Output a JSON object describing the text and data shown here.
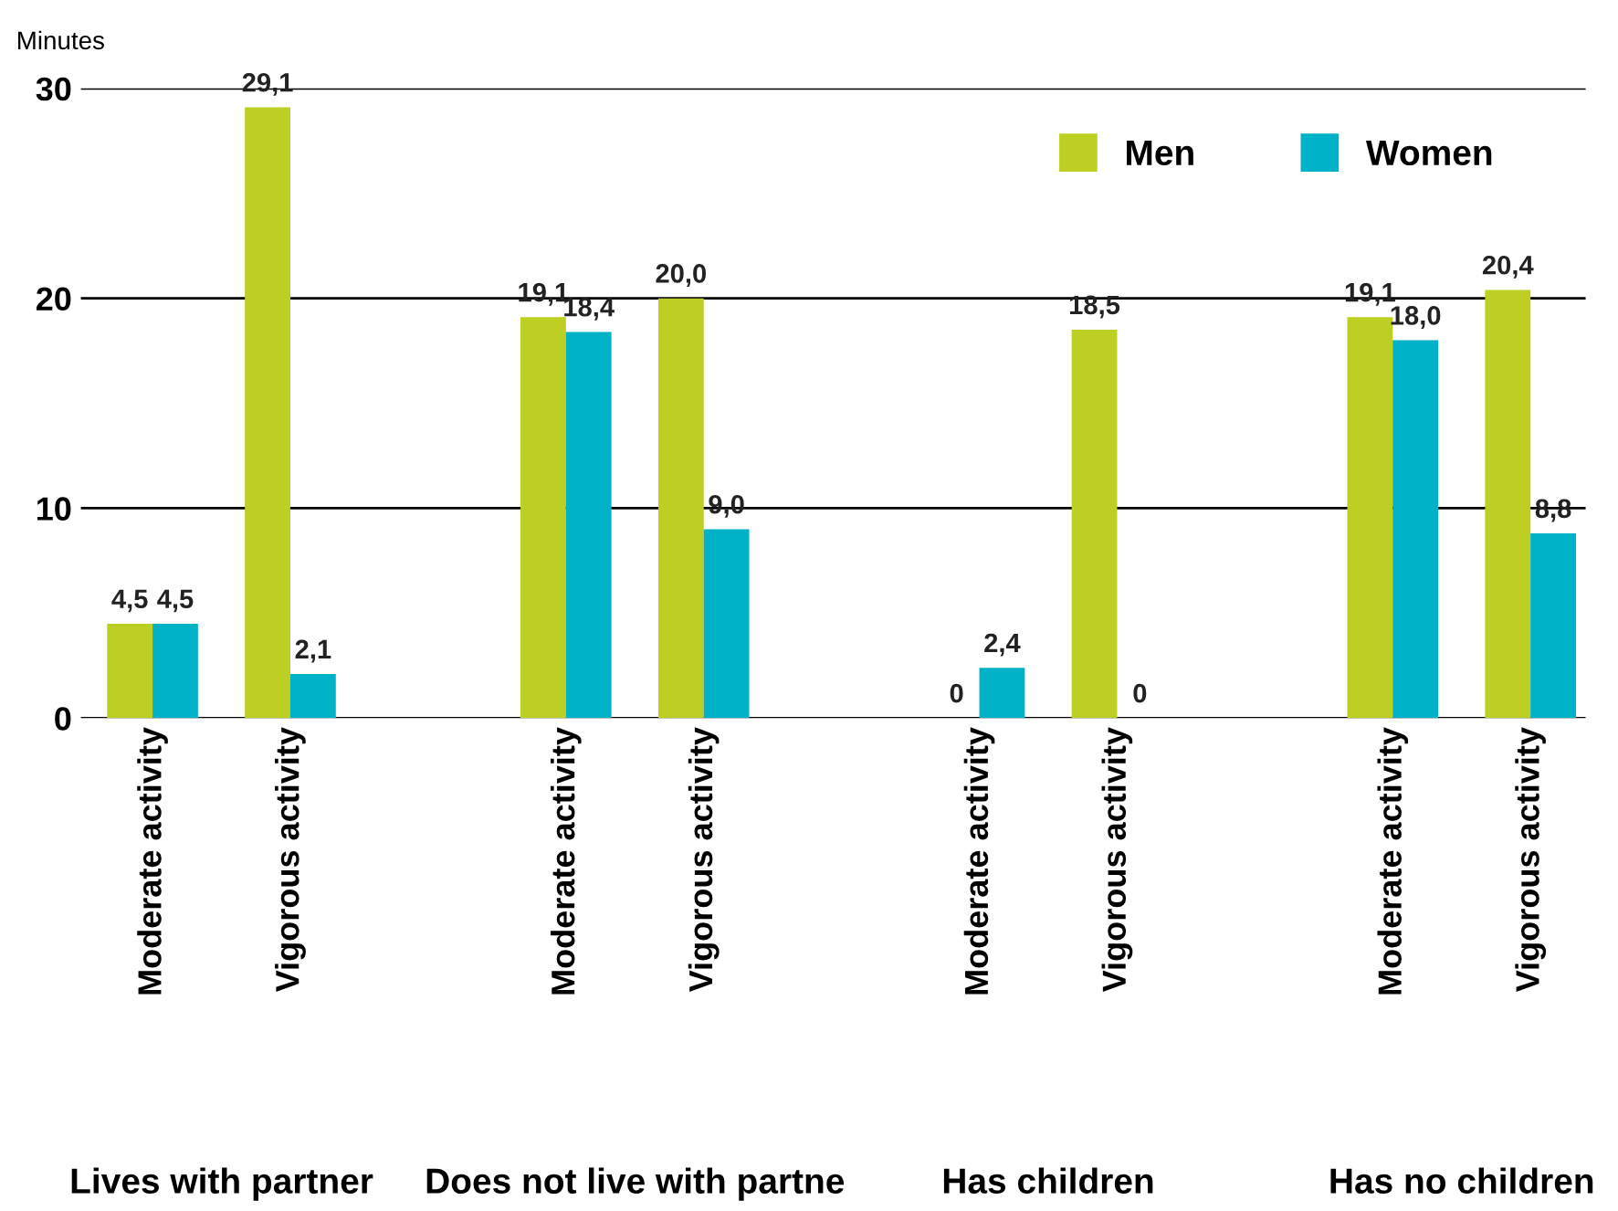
{
  "chart_data": {
    "type": "bar",
    "ylabel": "Minutes",
    "categories": [
      "Moderate activity",
      "Vigorous activity",
      null,
      "Moderate activity",
      "Vigorous activity",
      null,
      "Moderate activity",
      "Vigorous activity",
      null,
      "Moderate activity",
      "Vigorous activity"
    ],
    "series": [
      {
        "name": "Men",
        "color": "#bccf22",
        "values": [
          4.5,
          29.1,
          null,
          19.1,
          20.0,
          null,
          0,
          18.5,
          null,
          19.1,
          20.4
        ],
        "value_labels": [
          "4,5",
          "29,1",
          null,
          "19,1",
          "20,0",
          null,
          "0",
          "18,5",
          null,
          "19,1",
          "20,4"
        ]
      },
      {
        "name": "Women",
        "color": "#00b2c8",
        "values": [
          4.5,
          2.1,
          null,
          18.4,
          9.0,
          null,
          2.4,
          0,
          null,
          18.0,
          8.8
        ],
        "value_labels": [
          "4,5",
          "2,1",
          null,
          "18,4",
          "9,0",
          null,
          "2,4",
          "0",
          null,
          "18,0",
          "8,8"
        ]
      }
    ],
    "annotations": [
      "Lives with partner",
      "Does not live with partne",
      "Has children",
      "Has no children"
    ],
    "ylim": [
      0,
      30
    ],
    "yticks": [
      0,
      10,
      20,
      30
    ],
    "grid": "y",
    "legend": "top right"
  }
}
